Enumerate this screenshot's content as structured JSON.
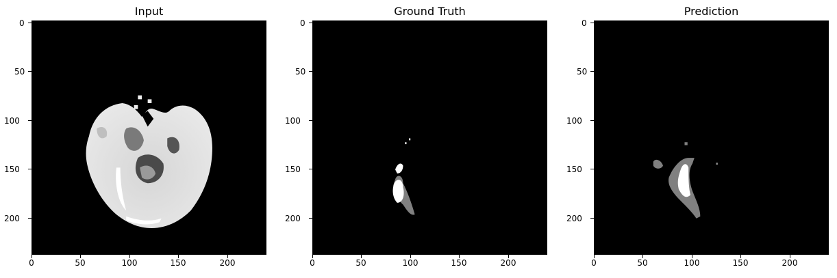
{
  "figure": {
    "panels": [
      {
        "title": "Input"
      },
      {
        "title": "Ground Truth"
      },
      {
        "title": "Prediction"
      }
    ],
    "x_ticks": [
      "0",
      "50",
      "100",
      "150",
      "200"
    ],
    "y_ticks": [
      "0",
      "50",
      "100",
      "150",
      "200"
    ],
    "image_size": [
      240,
      240
    ],
    "colormap": "gray"
  }
}
